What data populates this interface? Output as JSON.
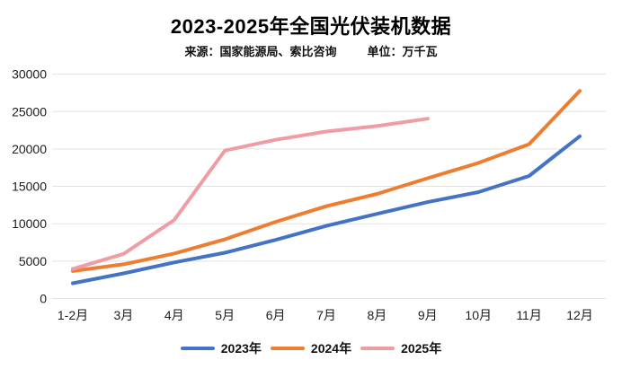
{
  "header": {
    "title": "2023-2025年全国光伏装机数据",
    "source": "来源：国家能源局、索比咨询",
    "unit": "单位：万千瓦"
  },
  "chart_data": {
    "type": "line",
    "title": "2023-2025年全国光伏装机数据",
    "xlabel": "",
    "ylabel": "",
    "unit": "万千瓦",
    "categories": [
      "1-2月",
      "3月",
      "4月",
      "5月",
      "6月",
      "7月",
      "8月",
      "9月",
      "10月",
      "11月",
      "12月"
    ],
    "series": [
      {
        "name": "2023年",
        "color": "#4472C4",
        "values": [
          2037,
          3366,
          4831,
          6121,
          7842,
          9716,
          11316,
          12894,
          14231,
          16388,
          21688
        ]
      },
      {
        "name": "2024年",
        "color": "#ED7D31",
        "values": [
          3672,
          4574,
          6011,
          7915,
          10248,
          12344,
          13990,
          16088,
          18130,
          20632,
          27757
        ]
      },
      {
        "name": "2025年",
        "color": "#F09CA4",
        "values": [
          3947,
          5971,
          10493,
          19785,
          21221,
          22325,
          23061,
          24043,
          null,
          null,
          null
        ]
      }
    ],
    "ylim": [
      0,
      30000
    ],
    "y_tick_step": 5000,
    "y_ticks": [
      "0",
      "5000",
      "10000",
      "15000",
      "20000",
      "25000",
      "30000"
    ],
    "grid": "horizontal",
    "legend_position": "bottom"
  },
  "style": {
    "grid_color": "#e2e2e2",
    "axis_text_color": "#1c1c1c",
    "background": "#ffffff",
    "line_width": 4
  }
}
